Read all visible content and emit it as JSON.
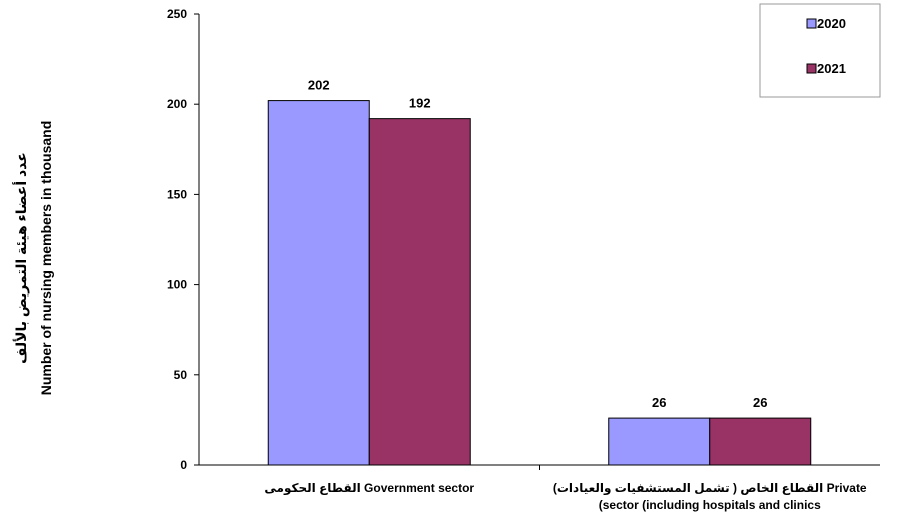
{
  "chart_data": {
    "type": "bar",
    "title": "",
    "ylabel_ar": "عدد أعضاء هيئة التمريض بالألف",
    "ylabel_en": "Number of nursing members in thousand",
    "categories": [
      {
        "line1": "القطاع الحكومى  Government sector",
        "line2": ""
      },
      {
        "line1": "القطاع الخاص ( تشمل المستشفيات والعيادات)   Private",
        "line2": "(sector (including hospitals and clinics"
      }
    ],
    "series": [
      {
        "name": "2020",
        "color": "#9999ff",
        "values": [
          202,
          26
        ]
      },
      {
        "name": "2021",
        "color": "#993366",
        "values": [
          192,
          26
        ]
      }
    ],
    "ylim": [
      0,
      250
    ],
    "yticks": [
      0,
      50,
      100,
      150,
      200,
      250
    ],
    "grid": false,
    "legend_position": "top-right"
  }
}
